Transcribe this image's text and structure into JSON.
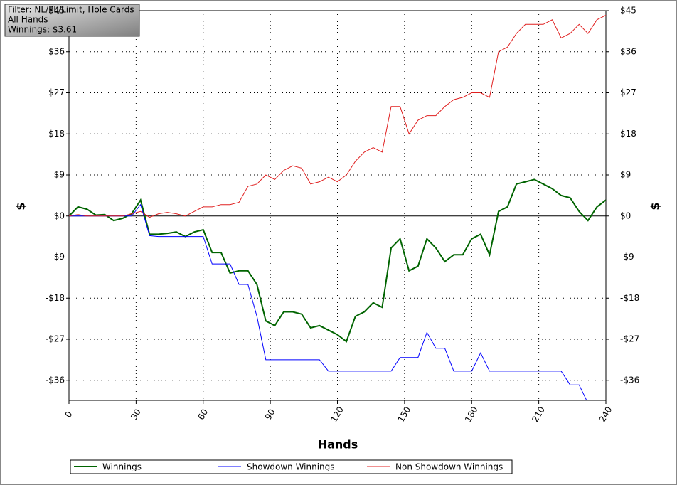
{
  "chart_data": {
    "type": "line",
    "annotations": [
      "Filter: NL/PL/Limit, Hole Cards",
      "All Hands",
      "Winnings: $3.61"
    ],
    "x_label": "Hands",
    "y_label": "$",
    "y2_label": "$",
    "x": [
      0,
      4,
      8,
      12,
      16,
      20,
      24,
      28,
      32,
      36,
      40,
      44,
      48,
      52,
      56,
      60,
      64,
      68,
      72,
      76,
      80,
      84,
      88,
      92,
      96,
      100,
      104,
      108,
      112,
      116,
      120,
      124,
      128,
      132,
      136,
      140,
      144,
      148,
      152,
      156,
      160,
      164,
      168,
      172,
      176,
      180,
      184,
      188,
      192,
      196,
      200,
      204,
      208,
      212,
      216,
      220,
      224,
      228,
      232,
      236,
      240
    ],
    "series": [
      {
        "name": "Winnings",
        "color": "#006400",
        "values": [
          0,
          2,
          1.5,
          0.2,
          0.3,
          -1,
          -0.5,
          0.5,
          3.5,
          -4,
          -4,
          -3.8,
          -3.5,
          -4.5,
          -3.5,
          -3,
          -8,
          -8,
          -12.5,
          -12,
          -12,
          -15,
          -23,
          -24,
          -21,
          -21,
          -21.5,
          -24.5,
          -24,
          -25,
          -26,
          -27.5,
          -22,
          -21,
          -19,
          -20,
          -7,
          -5,
          -12,
          -11,
          -5,
          -7,
          -10,
          -8.5,
          -8.5,
          -5,
          -4,
          -8.5,
          1,
          2,
          7,
          7.5,
          8,
          7,
          6,
          4.5,
          4,
          1,
          -1,
          2,
          3.5
        ]
      },
      {
        "name": "Showdown Winnings",
        "color": "#0000ff",
        "values": [
          0,
          0,
          0,
          0,
          0,
          0,
          0,
          0,
          2.5,
          -4.3,
          -4.5,
          -4.5,
          -4.5,
          -4.5,
          -4.5,
          -4.5,
          -10.5,
          -10.5,
          -10.5,
          -15,
          -15,
          -22,
          -31.5,
          -31.5,
          -31.5,
          -31.5,
          -31.5,
          -31.5,
          -31.5,
          -34,
          -34,
          -34,
          -34,
          -34,
          -34,
          -34,
          -34,
          -31,
          -31,
          -31,
          -25.5,
          -29,
          -29,
          -34,
          -34,
          -34,
          -30,
          -34,
          -34,
          -34,
          -34,
          -34,
          -34,
          -34,
          -34,
          -34,
          -37,
          -37,
          -41,
          null,
          null
        ]
      },
      {
        "name": "Non Showdown Winnings",
        "color": "#e02020",
        "values": [
          0,
          0.3,
          0,
          0,
          0,
          0,
          0,
          0.5,
          1,
          -0.3,
          0.5,
          0.8,
          0.5,
          0,
          1,
          2,
          2,
          2.5,
          2.5,
          3,
          6.5,
          7,
          9,
          8,
          10,
          11,
          10.5,
          7,
          7.5,
          8.5,
          7.5,
          9,
          12,
          14,
          15,
          14,
          24,
          24,
          18,
          21,
          22,
          22,
          24,
          25.5,
          26,
          27,
          27,
          26,
          36,
          37,
          40,
          42,
          42,
          42,
          43,
          39,
          40,
          42,
          40,
          43,
          44
        ]
      }
    ],
    "xlim": [
      0,
      240
    ],
    "xticks": [
      0,
      30,
      60,
      90,
      120,
      150,
      180,
      210,
      240
    ],
    "ylim": [
      -40.4,
      45
    ],
    "yticks": [
      {
        "value": -36,
        "label": "-$36"
      },
      {
        "value": -27,
        "label": "-$27"
      },
      {
        "value": -18,
        "label": "-$18"
      },
      {
        "value": -9,
        "label": "-$9"
      },
      {
        "value": 0,
        "label": "$0"
      },
      {
        "value": 9,
        "label": "$9"
      },
      {
        "value": 18,
        "label": "$18"
      },
      {
        "value": 27,
        "label": "$27"
      },
      {
        "value": 36,
        "label": "$36"
      },
      {
        "value": 45,
        "label": "$45"
      }
    ],
    "y2lim": [
      -40.4,
      45
    ],
    "y2ticks": [
      {
        "value": -36,
        "label": "-$36"
      },
      {
        "value": -27,
        "label": "-$27"
      },
      {
        "value": -18,
        "label": "-$18"
      },
      {
        "value": -9,
        "label": "-$9"
      },
      {
        "value": 0,
        "label": "$0"
      },
      {
        "value": 9,
        "label": "$9"
      },
      {
        "value": 18,
        "label": "$18"
      },
      {
        "value": 27,
        "label": "$27"
      },
      {
        "value": 36,
        "label": "$36"
      },
      {
        "value": 45,
        "label": "$45"
      }
    ],
    "grid": true,
    "legend": "bottom"
  }
}
